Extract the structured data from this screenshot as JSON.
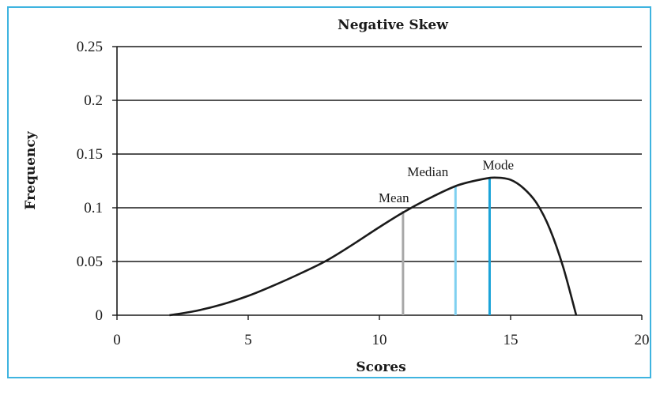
{
  "chart_data": {
    "type": "line",
    "title": "Negative Skew",
    "xlabel": "Scores",
    "ylabel": "Frequency",
    "xlim": [
      0,
      20
    ],
    "ylim": [
      0,
      0.25
    ],
    "x_ticks": [
      "0",
      "5",
      "10",
      "15",
      "20"
    ],
    "y_ticks": [
      "0",
      "0.05",
      "0.1",
      "0.15",
      "0.2",
      "0.25"
    ],
    "grid": "horizontal",
    "series": [
      {
        "x": [
          2,
          3,
          4,
          5,
          6,
          7,
          8,
          9,
          10,
          11,
          12,
          13,
          14,
          14.5,
          15,
          15.5,
          16,
          16.5,
          17,
          17.5
        ],
        "y": [
          0.0,
          0.004,
          0.01,
          0.018,
          0.028,
          0.039,
          0.051,
          0.066,
          0.082,
          0.097,
          0.11,
          0.121,
          0.127,
          0.128,
          0.126,
          0.118,
          0.104,
          0.08,
          0.045,
          0.0
        ]
      }
    ],
    "annotations": [
      {
        "label": "Mean",
        "x": 10.9,
        "y": 0.097,
        "color": "#a8a8a8"
      },
      {
        "label": "Median",
        "x": 12.9,
        "y": 0.12,
        "color": "#7fd0f0"
      },
      {
        "label": "Mode",
        "x": 14.2,
        "y": 0.127,
        "color": "#1aa3d8"
      }
    ],
    "colors": {
      "curve": "#1a1a1a",
      "frame": "#3fb4e0",
      "grid": "#1a1a1a"
    }
  }
}
